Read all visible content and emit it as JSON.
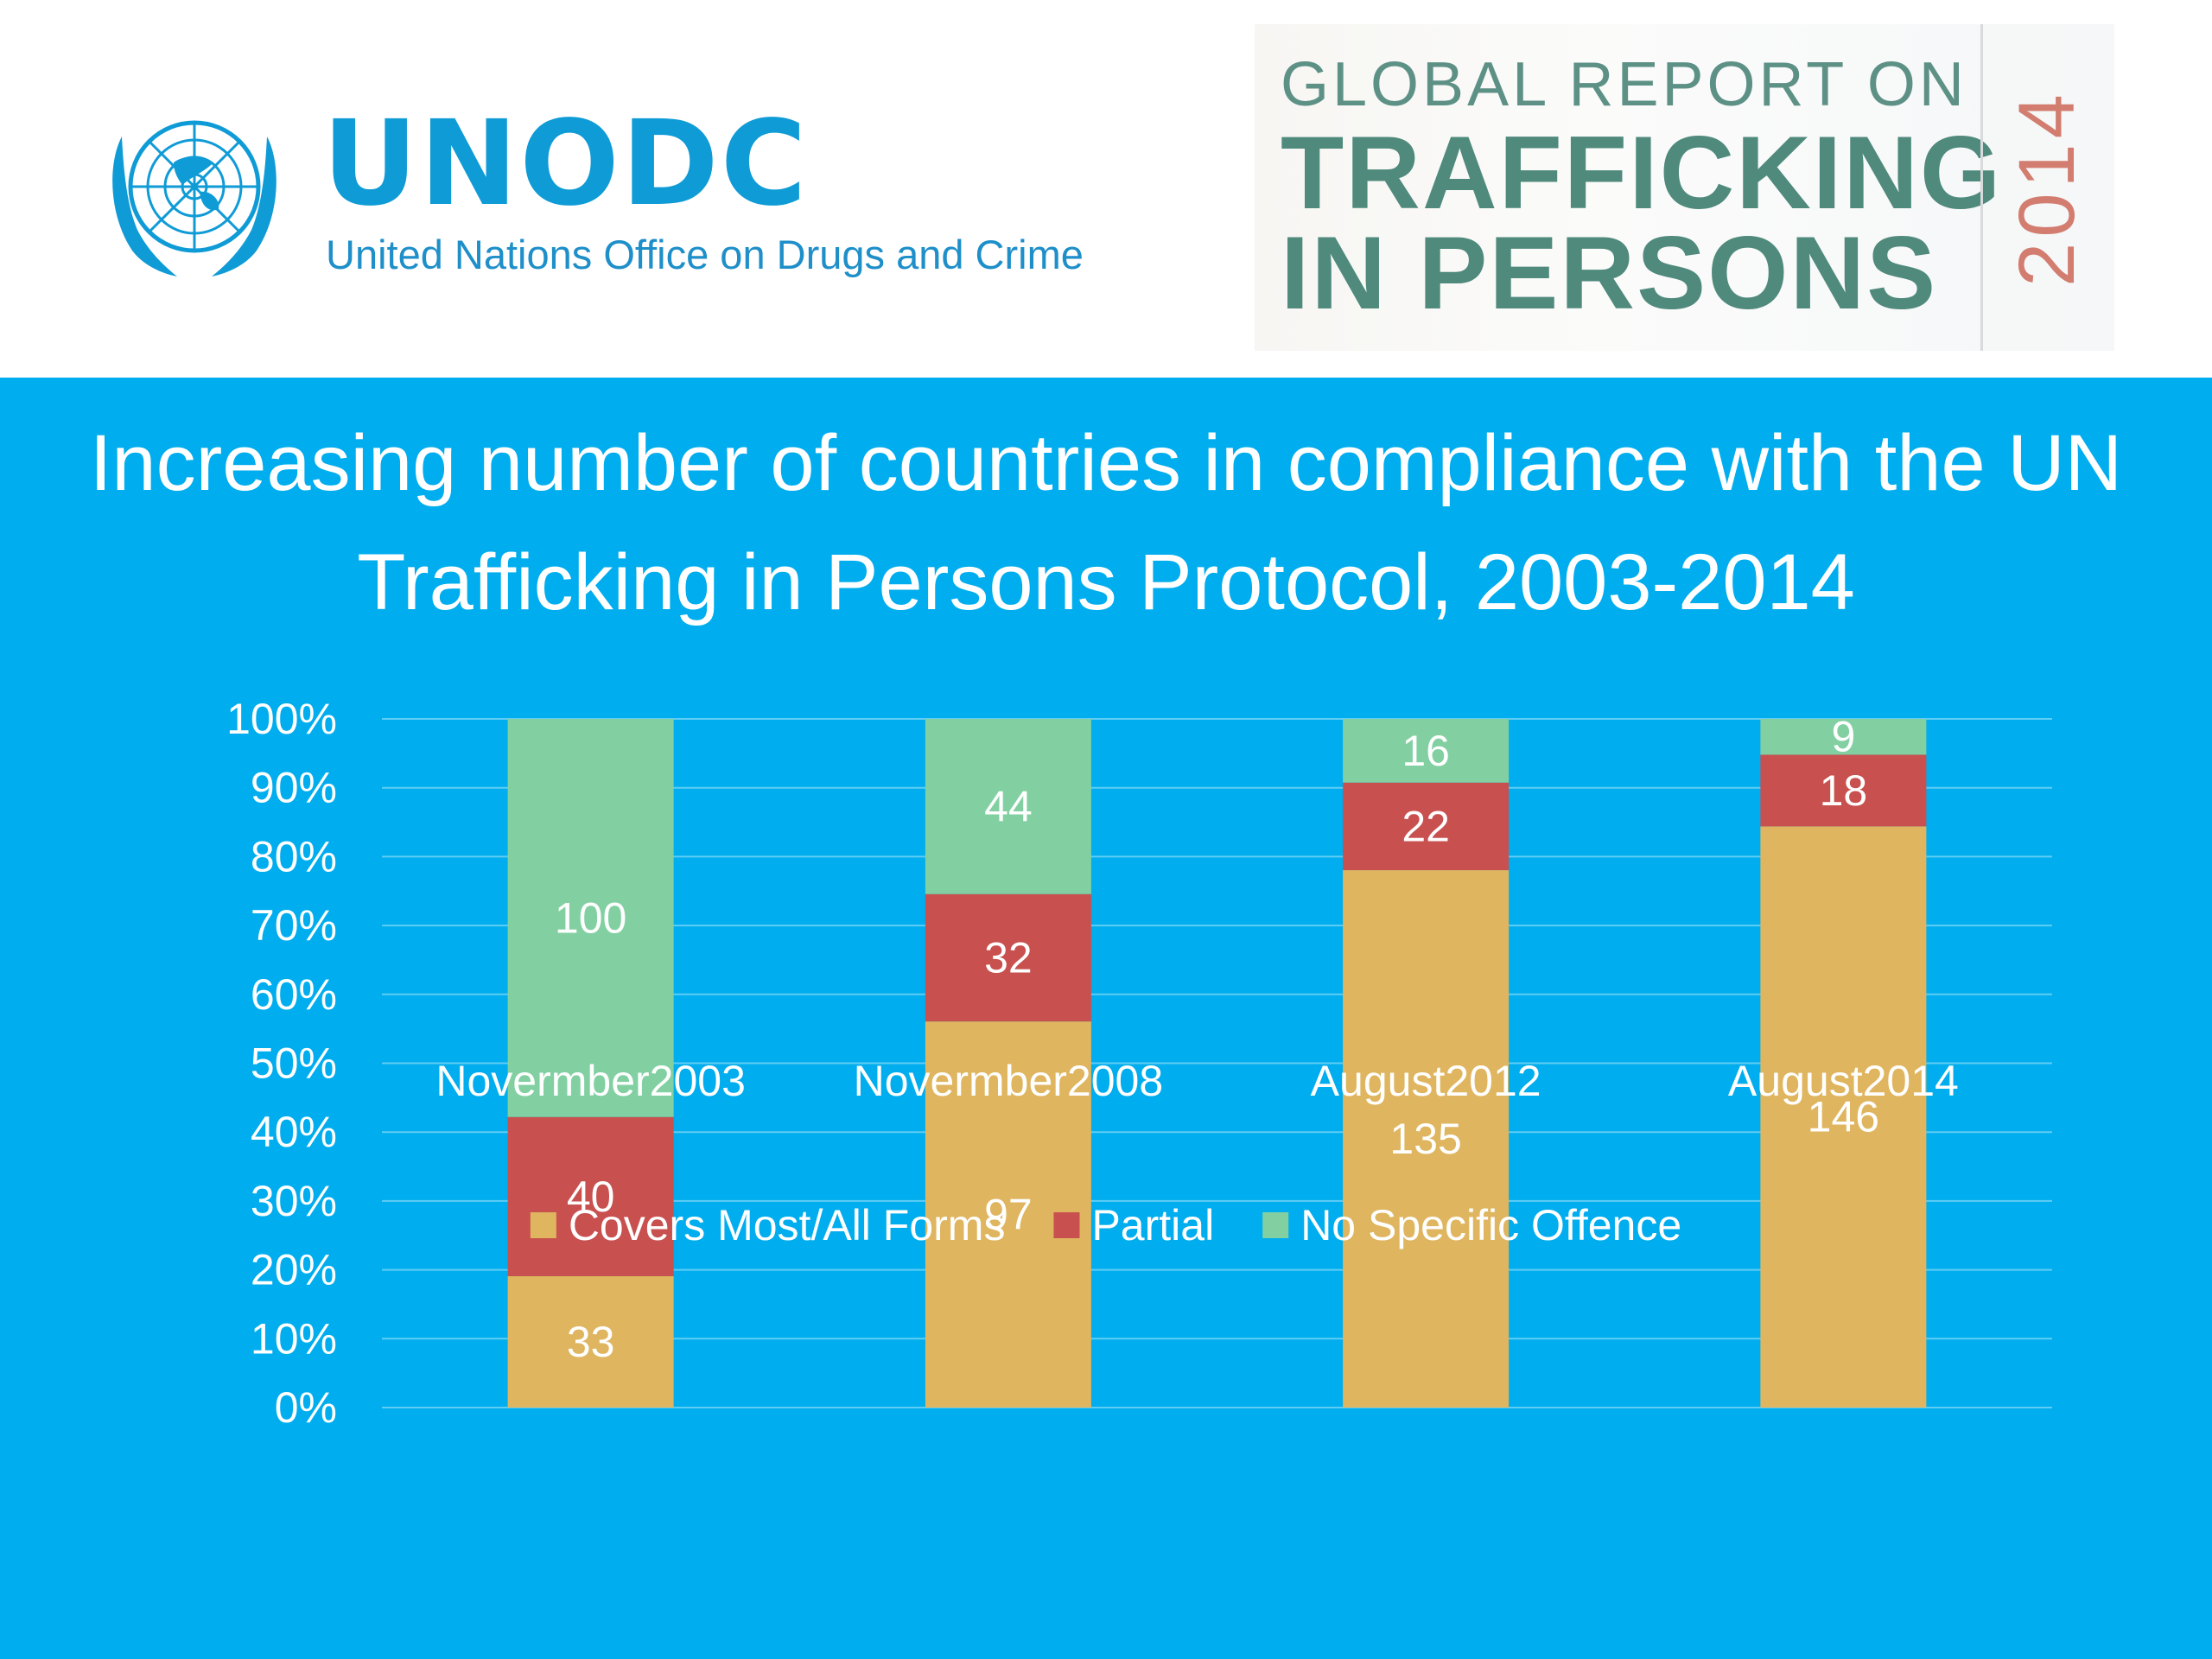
{
  "header": {
    "org_name": "UNODC",
    "org_full_name": "United Nations Office on Drugs and Crime",
    "report_line1": "GLOBAL REPORT ON",
    "report_line2": "TRAFFICKING",
    "report_line3": "IN PERSONS",
    "report_year": "2014"
  },
  "colors": {
    "background": "#00adee",
    "covers": "#dfb55f",
    "partial": "#c8504f",
    "no_offence": "#82d0a2",
    "gridline": "#5fcdf4",
    "brand": "#0f9bd6"
  },
  "chart_data": {
    "type": "bar",
    "stacked": "percent",
    "title": "Increasing number of countries in compliance with the UN Trafficking in Persons Protocol, 2003-2014",
    "categories": [
      "Novermber2003",
      "Novermber2008",
      "August2012",
      "August2014"
    ],
    "series": [
      {
        "name": "Covers Most/All Forms",
        "values": [
          33,
          97,
          135,
          146
        ],
        "color": "#dfb55f"
      },
      {
        "name": "Partial",
        "values": [
          40,
          32,
          22,
          18
        ],
        "color": "#c8504f"
      },
      {
        "name": "No Specific Offence",
        "values": [
          100,
          44,
          16,
          9
        ],
        "color": "#82d0a2"
      }
    ],
    "yticks": [
      "0%",
      "10%",
      "20%",
      "30%",
      "40%",
      "50%",
      "60%",
      "70%",
      "80%",
      "90%",
      "100%"
    ],
    "ylim": [
      0,
      100
    ],
    "grid": true,
    "legend": "bottom"
  }
}
